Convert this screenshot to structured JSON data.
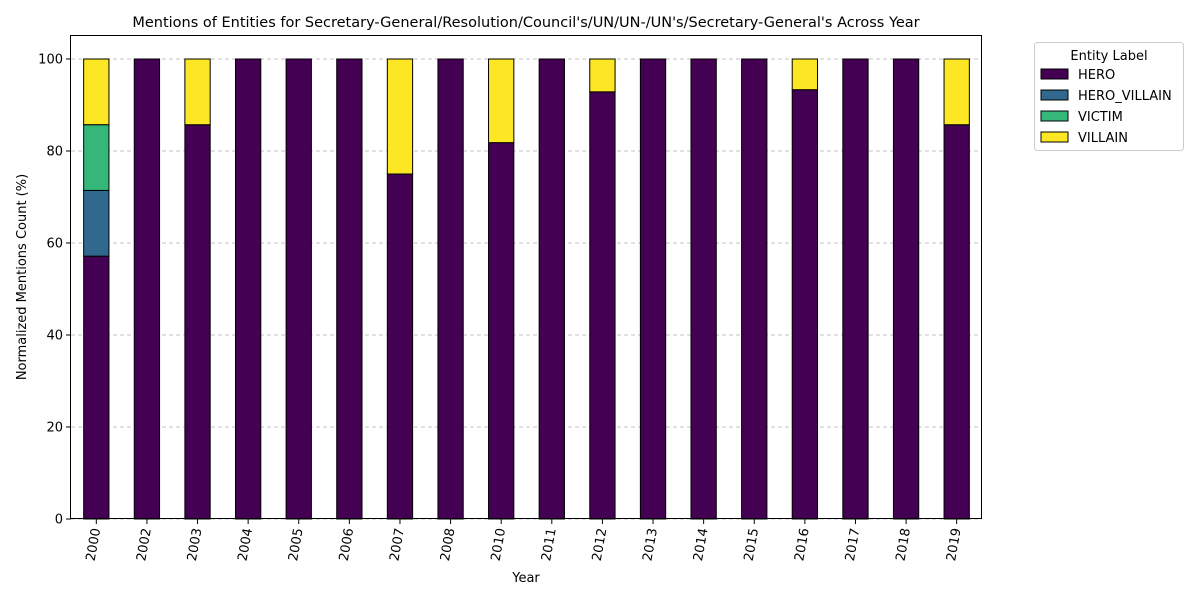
{
  "chart_data": {
    "type": "bar",
    "stacked": true,
    "title": "Mentions of Entities for Secretary-General/Resolution/Council's/UN/UN-/UN's/Secretary-General's Across Year",
    "xlabel": "Year",
    "ylabel": "Normalized Mentions Count (%)",
    "ylim": [
      0,
      105
    ],
    "yticks": [
      0,
      20,
      40,
      60,
      80,
      100
    ],
    "grid": "y-dashed",
    "legend": {
      "title": "Entity Label",
      "placement": "outside-top-right"
    },
    "categories": [
      "2000",
      "2002",
      "2003",
      "2004",
      "2005",
      "2006",
      "2007",
      "2008",
      "2010",
      "2011",
      "2012",
      "2013",
      "2014",
      "2015",
      "2016",
      "2017",
      "2018",
      "2019"
    ],
    "series": [
      {
        "name": "HERO",
        "color": "#440154",
        "values": [
          57.14,
          100,
          85.71,
          100,
          100,
          100,
          75,
          100,
          81.82,
          100,
          92.86,
          100,
          100,
          100,
          93.33,
          100,
          100,
          85.71
        ]
      },
      {
        "name": "HERO_VILLAIN",
        "color": "#31688e",
        "values": [
          14.29,
          0,
          0,
          0,
          0,
          0,
          0,
          0,
          0,
          0,
          0,
          0,
          0,
          0,
          0,
          0,
          0,
          0
        ]
      },
      {
        "name": "VICTIM",
        "color": "#35b779",
        "values": [
          14.29,
          0,
          0,
          0,
          0,
          0,
          0,
          0,
          0,
          0,
          0,
          0,
          0,
          0,
          0,
          0,
          0,
          0
        ]
      },
      {
        "name": "VILLAIN",
        "color": "#fde725",
        "values": [
          14.28,
          0,
          14.29,
          0,
          0,
          0,
          25,
          0,
          18.18,
          0,
          7.14,
          0,
          0,
          0,
          6.67,
          0,
          0,
          14.29
        ]
      }
    ]
  }
}
